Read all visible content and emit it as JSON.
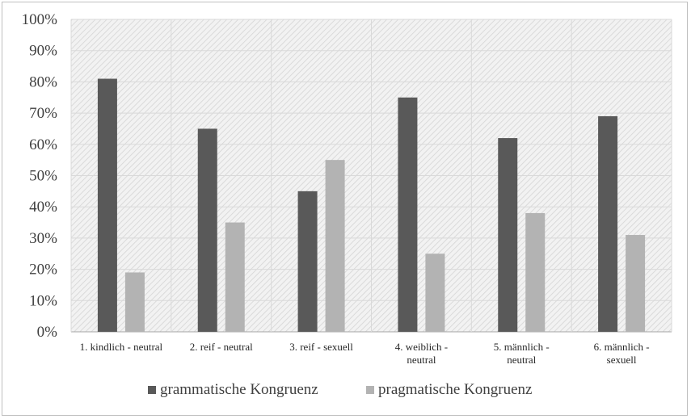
{
  "chart_data": {
    "type": "bar",
    "categories": [
      [
        "1. kindlich - neutral"
      ],
      [
        "2. reif - neutral"
      ],
      [
        "3. reif - sexuell"
      ],
      [
        "4.  weiblich -",
        "neutral"
      ],
      [
        "5. männlich -",
        "neutral"
      ],
      [
        "6.  männlich -",
        "sexuell"
      ]
    ],
    "series": [
      {
        "name": "grammatische Kongruenz",
        "values": [
          81,
          65,
          45,
          75,
          62,
          69
        ],
        "color": "#595959"
      },
      {
        "name": "pragmatische Kongruenz",
        "values": [
          19,
          35,
          55,
          25,
          38,
          31
        ],
        "color": "#b3b3b3"
      }
    ],
    "yticks": [
      "0%",
      "10%",
      "20%",
      "30%",
      "40%",
      "50%",
      "60%",
      "70%",
      "80%",
      "90%",
      "100%"
    ],
    "ylim": [
      0,
      100
    ],
    "grid": true,
    "legend_position": "bottom",
    "plot_background": "hatched light gray"
  }
}
